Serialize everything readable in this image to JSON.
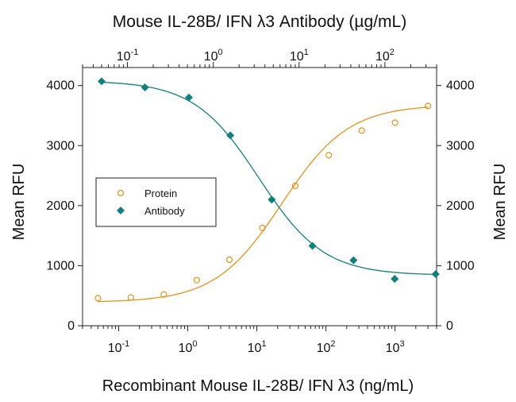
{
  "chart_data": {
    "type": "scatter",
    "top_title": "Mouse IL-28B/ IFN λ3 Antibody (µg/mL)",
    "xlabel": "Recombinant Mouse IL-28B/ IFN λ3  (ng/mL)",
    "ylabel_left": "Mean RFU",
    "ylabel_right": "Mean RFU",
    "x_scale": "log",
    "x_bottom_range": [
      0.03,
      4000
    ],
    "x_top_range": [
      0.03,
      400
    ],
    "ylim": [
      0,
      4300
    ],
    "y_ticks": [
      0,
      1000,
      2000,
      3000,
      4000
    ],
    "y_tick_labels": [
      "0",
      "1000",
      "2000",
      "3000",
      "4000"
    ],
    "x_bottom_ticks": [
      {
        "base": "10",
        "exp": "-1",
        "value": 0.1
      },
      {
        "base": "10",
        "exp": "0",
        "value": 1
      },
      {
        "base": "10",
        "exp": "1",
        "value": 10
      },
      {
        "base": "10",
        "exp": "2",
        "value": 100
      },
      {
        "base": "10",
        "exp": "3",
        "value": 1000
      }
    ],
    "x_top_ticks": [
      {
        "base": "10",
        "exp": "-1",
        "value": 0.1
      },
      {
        "base": "10",
        "exp": "0",
        "value": 1
      },
      {
        "base": "10",
        "exp": "1",
        "value": 10
      },
      {
        "base": "10",
        "exp": "2",
        "value": 100
      }
    ],
    "legend": {
      "placement": "left-middle"
    },
    "series": [
      {
        "name": "Protein",
        "axis": "bottom",
        "marker": "open-circle",
        "color": "#E8901B",
        "x": [
          0.05,
          0.15,
          0.45,
          1.35,
          4.0,
          12.0,
          36.0,
          110.0,
          330.0,
          1000.0,
          3000.0
        ],
        "y": [
          460,
          470,
          520,
          760,
          1100,
          1630,
          2330,
          2840,
          3250,
          3380,
          3660
        ],
        "fit": {
          "bottom": 390,
          "top": 3680,
          "ec50": 23,
          "hill": 0.9
        }
      },
      {
        "name": "Antibody",
        "axis": "top",
        "marker": "filled-diamond",
        "color": "#117F7C",
        "x": [
          0.05,
          0.16,
          0.52,
          1.58,
          4.8,
          14.3,
          43.0,
          130.0,
          390.0
        ],
        "y": [
          4070,
          3970,
          3800,
          3170,
          2100,
          1330,
          1090,
          780,
          860
        ],
        "fit": {
          "bottom": 840,
          "top": 4080,
          "ec50": 3.4,
          "hill": 1.15
        }
      }
    ]
  }
}
